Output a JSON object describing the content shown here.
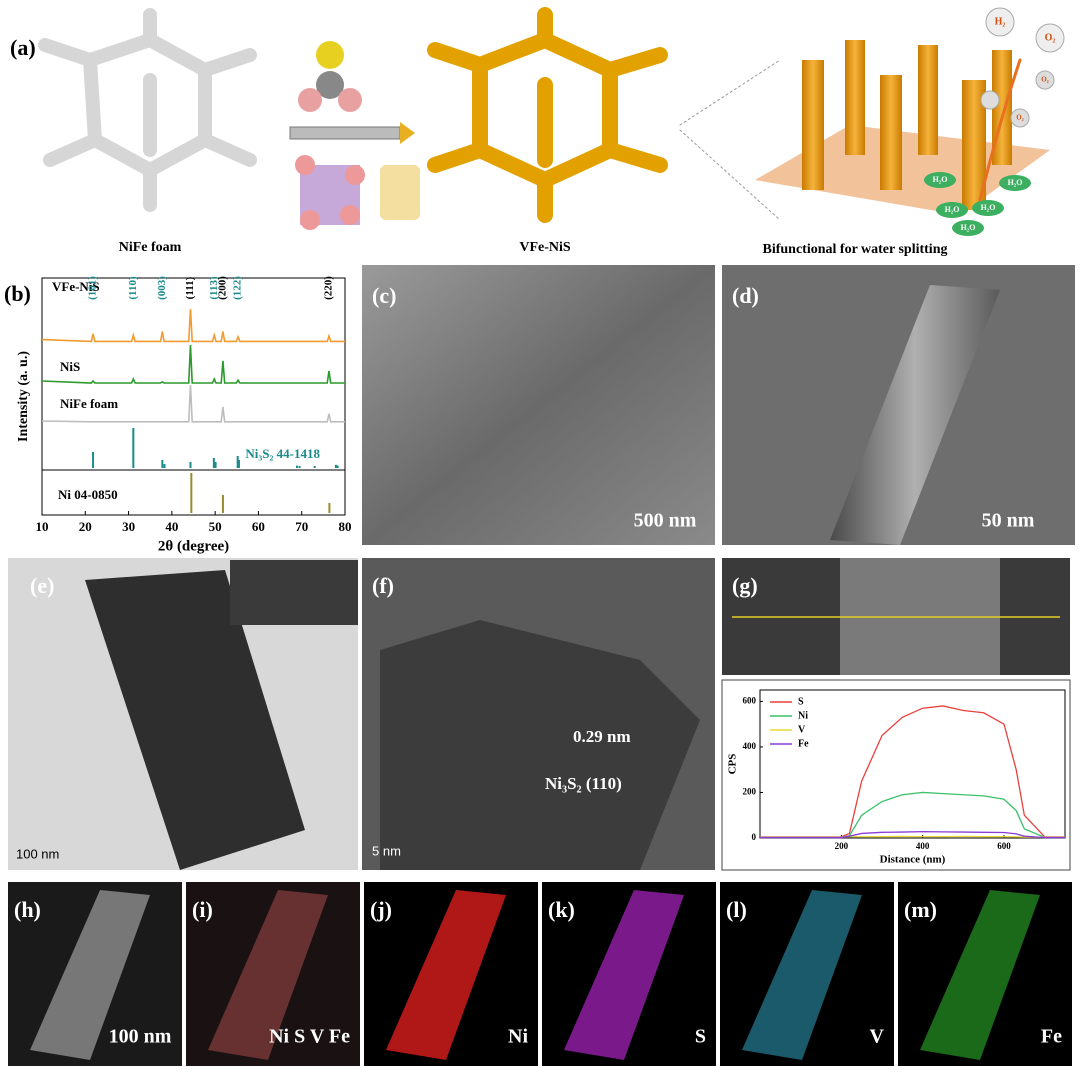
{
  "figure": {
    "panel_a": {
      "label": "(a)",
      "captions": [
        "NiFe foam",
        "VFe-NiS",
        "Bifunctional for water splitting"
      ],
      "molecules": [
        "H₂",
        "O₂",
        "O₂",
        "O₂",
        "H₂O",
        "H₂O",
        "H₂O",
        "H₂O",
        "H₂O"
      ]
    },
    "panels": [
      {
        "label": "(c)",
        "scale": "500 nm"
      },
      {
        "label": "(d)",
        "scale": "50 nm"
      },
      {
        "label": "(e)",
        "scale": "100 nm"
      },
      {
        "label": "(f)",
        "scale": "5 nm",
        "notes": [
          "0.29 nm",
          "Ni₃S₂ (110)"
        ]
      },
      {
        "label": "(g)"
      },
      {
        "label": "(h)",
        "scale": "100 nm"
      },
      {
        "label": "(i)",
        "scale": "Ni S V Fe"
      },
      {
        "label": "(j)",
        "scale": "Ni"
      },
      {
        "label": "(k)",
        "scale": "S"
      },
      {
        "label": "(l)",
        "scale": "V"
      },
      {
        "label": "(m)",
        "scale": "Fe"
      }
    ]
  },
  "chart_data": [
    {
      "type": "xrd",
      "panel_label": "(b)",
      "xlabel": "2θ (degree)",
      "ylabel": "Intensity (a. u.)",
      "xlim": [
        10,
        80
      ],
      "xticks": [
        10,
        20,
        30,
        40,
        50,
        60,
        70,
        80
      ],
      "ylim": [
        0,
        100
      ],
      "x": [
        10,
        21.4,
        21.8,
        22.2,
        30.7,
        31.1,
        31.5,
        37.4,
        37.8,
        38.2,
        43.9,
        44.3,
        44.7,
        49.4,
        49.8,
        50.2,
        51.4,
        51.8,
        52.2,
        54.9,
        55.3,
        55.7,
        75.9,
        76.3,
        76.7,
        80
      ],
      "series": [
        {
          "name": "VFe-NiS",
          "color": "#f39a2e",
          "values": [
            12,
            8,
            25,
            8,
            8,
            22,
            8,
            8,
            30,
            8,
            8,
            80,
            8,
            8,
            22,
            8,
            8,
            30,
            8,
            8,
            18,
            8,
            8,
            20,
            8,
            8
          ]
        },
        {
          "name": "NiS",
          "color": "#2a9a2a",
          "values": [
            10,
            5,
            10,
            5,
            5,
            15,
            5,
            5,
            8,
            5,
            5,
            100,
            5,
            5,
            15,
            5,
            5,
            60,
            5,
            5,
            12,
            5,
            5,
            35,
            5,
            5
          ]
        },
        {
          "name": "NiFe foam",
          "color": "#bdbdbd",
          "values": [
            10,
            8,
            8,
            8,
            8,
            8,
            8,
            8,
            8,
            8,
            8,
            100,
            8,
            8,
            8,
            8,
            8,
            45,
            8,
            8,
            8,
            8,
            8,
            28,
            8,
            8
          ]
        }
      ],
      "references": [
        {
          "name": "Ni₃S₂ 44-1418",
          "color": "#1a8a8a",
          "positions": [
            21.8,
            31.1,
            37.8,
            38.3,
            44.3,
            49.7,
            50.1,
            55.2,
            55.5,
            68.9,
            69.5,
            73,
            77.9,
            78.3
          ],
          "values": [
            40,
            100,
            20,
            10,
            15,
            25,
            15,
            30,
            20,
            6,
            5,
            5,
            8,
            6
          ]
        },
        {
          "name": "Ni 04-0850",
          "color": "#9a8a2a",
          "positions": [
            44.5,
            51.8,
            76.4
          ],
          "values": [
            100,
            45,
            25
          ]
        }
      ],
      "peak_labels": [
        {
          "text": "(101)",
          "x": 21.8,
          "color": "#1a8a8a"
        },
        {
          "text": "(110)",
          "x": 31.1,
          "color": "#1a8a8a"
        },
        {
          "text": "(003)",
          "x": 37.8,
          "color": "#1a8a8a"
        },
        {
          "text": "(111)",
          "x": 44.3,
          "color": "#000000"
        },
        {
          "text": "(113)",
          "x": 49.8,
          "color": "#1a8a8a"
        },
        {
          "text": "(200)",
          "x": 51.8,
          "color": "#000000"
        },
        {
          "text": "(122)",
          "x": 55.3,
          "color": "#1a8a8a"
        },
        {
          "text": "(220)",
          "x": 76.3,
          "color": "#000000"
        }
      ]
    },
    {
      "type": "line",
      "xlabel": "Distance (nm)",
      "ylabel": "CPS",
      "xlim": [
        0,
        750
      ],
      "xticks": [
        200,
        400,
        600
      ],
      "ylim": [
        0,
        650
      ],
      "yticks": [
        0,
        200,
        400,
        600
      ],
      "x": [
        0,
        100,
        200,
        220,
        250,
        300,
        350,
        400,
        450,
        500,
        550,
        600,
        630,
        650,
        700,
        750
      ],
      "series": [
        {
          "name": "S",
          "color": "#e8413c",
          "values": [
            5,
            5,
            5,
            20,
            250,
            450,
            530,
            570,
            580,
            560,
            550,
            500,
            300,
            100,
            5,
            5
          ]
        },
        {
          "name": "Ni",
          "color": "#3cc06a",
          "values": [
            3,
            3,
            3,
            10,
            100,
            160,
            190,
            200,
            195,
            190,
            185,
            170,
            120,
            40,
            3,
            3
          ]
        },
        {
          "name": "V",
          "color": "#e8d83a",
          "values": [
            3,
            3,
            3,
            5,
            6,
            6,
            7,
            6,
            6,
            7,
            6,
            6,
            5,
            4,
            3,
            3
          ]
        },
        {
          "name": "Fe",
          "color": "#8a3cd8",
          "values": [
            2,
            2,
            2,
            8,
            20,
            25,
            26,
            28,
            27,
            26,
            25,
            24,
            18,
            8,
            2,
            2
          ]
        }
      ]
    }
  ]
}
